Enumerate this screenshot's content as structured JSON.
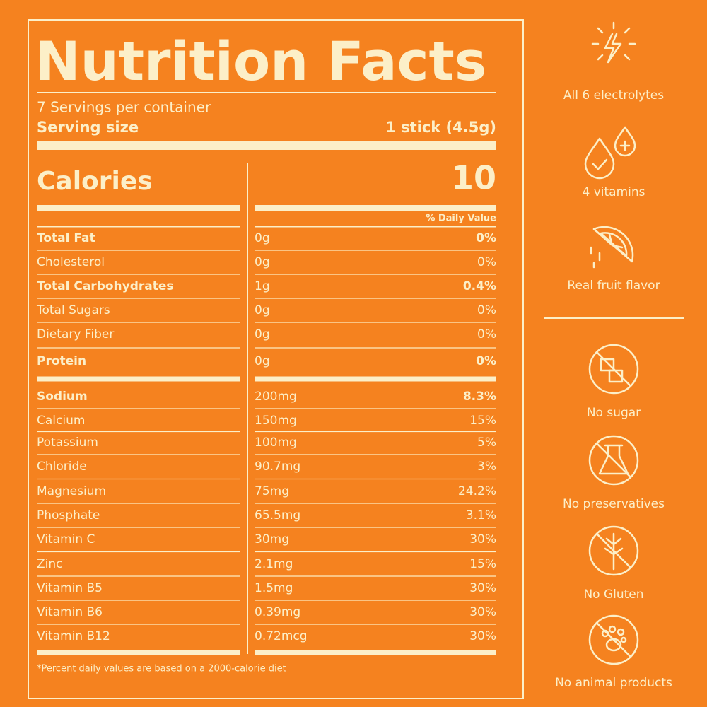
{
  "label": {
    "title": "Nutrition Facts",
    "servings": "7 Servings per container",
    "serving_size_label": "Serving size",
    "serving_size_value": "1 stick (4.5g)",
    "calories_label": "Calories",
    "calories_value": "10",
    "daily_value_header": "% Daily Value",
    "rows": [
      {
        "name": "Total Fat",
        "amount": "0g",
        "dv": "0%",
        "bold": true
      },
      {
        "name": "Cholesterol",
        "amount": "0g",
        "dv": "0%",
        "bold": false
      },
      {
        "name": "Total Carbohydrates",
        "amount": "1g",
        "dv": "0.4%",
        "bold": true
      },
      {
        "name": "Total Sugars",
        "amount": "0g",
        "dv": "0%",
        "bold": false
      },
      {
        "name": "Dietary Fiber",
        "amount": "0g",
        "dv": "0%",
        "bold": false
      },
      {
        "name": "Protein",
        "amount": "0g",
        "dv": "0%",
        "bold": true
      },
      {
        "name": "Sodium",
        "amount": "200mg",
        "dv": "8.3%",
        "bold": true
      },
      {
        "name": "Calcium",
        "amount": "150mg",
        "dv": "15%",
        "bold": false
      },
      {
        "name": "Potassium",
        "amount": "100mg",
        "dv": "5%",
        "bold": false
      },
      {
        "name": "Chloride",
        "amount": "90.7mg",
        "dv": "3%",
        "bold": false
      },
      {
        "name": "Magnesium",
        "amount": "75mg",
        "dv": "24.2%",
        "bold": false
      },
      {
        "name": "Phosphate",
        "amount": "65.5mg",
        "dv": "3.1%",
        "bold": false
      },
      {
        "name": "Vitamin C",
        "amount": "30mg",
        "dv": "30%",
        "bold": false
      },
      {
        "name": "Zinc",
        "amount": "2.1mg",
        "dv": "15%",
        "bold": false
      },
      {
        "name": "Vitamin B5",
        "amount": "1.5mg",
        "dv": "30%",
        "bold": false
      },
      {
        "name": "Vitamin B6",
        "amount": "0.39mg",
        "dv": "30%",
        "bold": false
      },
      {
        "name": "Vitamin B12",
        "amount": "0.72mcg",
        "dv": "30%",
        "bold": false
      }
    ],
    "footnote": "*Percent daily values are based on a 2000-calorie diet"
  },
  "features": [
    "All 6 electrolytes",
    "4 vitamins",
    "Real fruit flavor",
    "No sugar",
    "No preservatives",
    "No Gluten",
    "No animal products"
  ]
}
